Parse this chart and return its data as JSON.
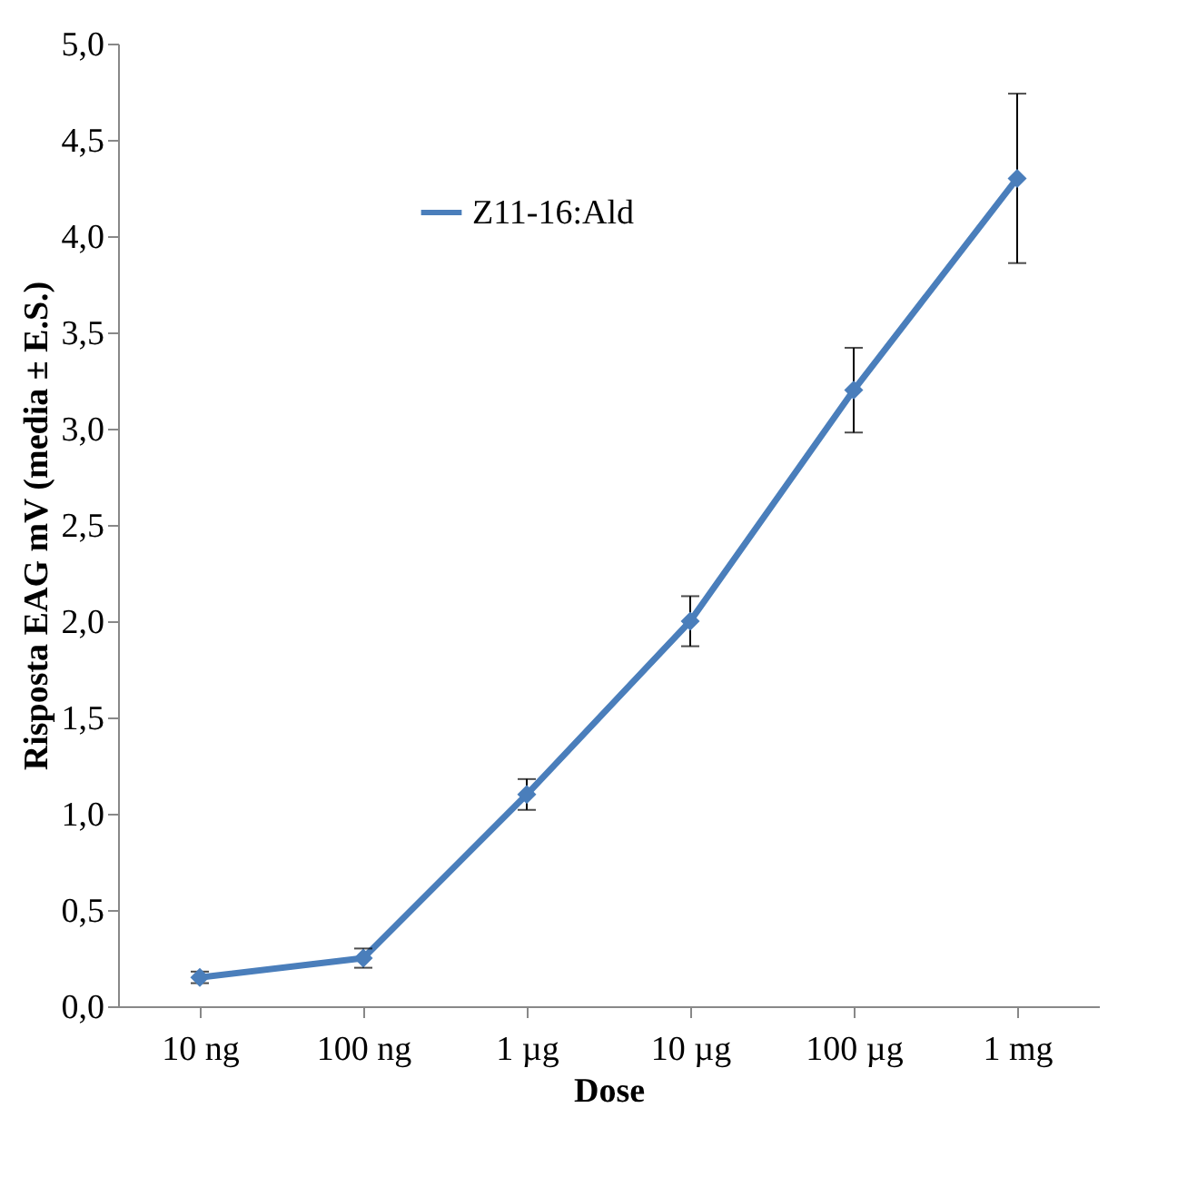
{
  "chart_data": {
    "type": "line",
    "xlabel": "Dose",
    "ylabel": "Risposta EAG mV (media ± E.S.)",
    "categories": [
      "10 ng",
      "100 ng",
      "1 µg",
      "10 µg",
      "100 µg",
      "1 mg"
    ],
    "series": [
      {
        "name": "Z11-16:Ald",
        "color": "#4a7ebb",
        "values": [
          0.15,
          0.25,
          1.1,
          2.0,
          3.2,
          4.3
        ],
        "errors": [
          0.03,
          0.05,
          0.08,
          0.13,
          0.22,
          0.44
        ]
      }
    ],
    "ylim": [
      0,
      5
    ],
    "yticks": [
      {
        "value": 0,
        "label": "0,0"
      },
      {
        "value": 0.5,
        "label": "0,5"
      },
      {
        "value": 1,
        "label": "1,0"
      },
      {
        "value": 1.5,
        "label": "1,5"
      },
      {
        "value": 2,
        "label": "2,0"
      },
      {
        "value": 2.5,
        "label": "2,5"
      },
      {
        "value": 3,
        "label": "3,0"
      },
      {
        "value": 3.5,
        "label": "3,5"
      },
      {
        "value": 4,
        "label": "4,0"
      },
      {
        "value": 4.5,
        "label": "4,5"
      },
      {
        "value": 5,
        "label": "5,0"
      }
    ],
    "grid": false,
    "legend": "top",
    "marker": "diamond",
    "line_style": "solid"
  }
}
